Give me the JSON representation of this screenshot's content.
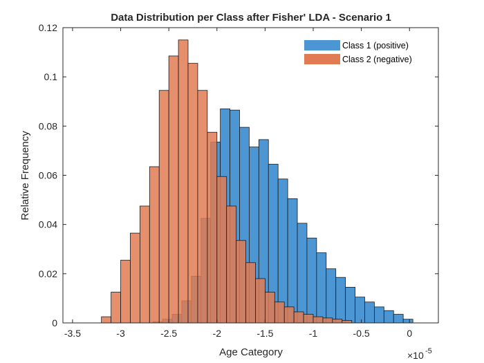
{
  "chart_data": {
    "type": "bar",
    "title": "Data Distribution per Class after Fisher' LDA -  Scenario 1",
    "xlabel": "Age Category",
    "ylabel": "Relative Frequency",
    "x_exponent_label": "×10",
    "x_exponent_power": "-5",
    "xlim": [
      -3.6,
      0.3
    ],
    "ylim": [
      0,
      0.12
    ],
    "x_scale_note": "x values in units of 1e-5",
    "xticks": [
      -3.5,
      -3,
      -2.5,
      -2,
      -1.5,
      -1,
      -0.5,
      0
    ],
    "xtick_labels": [
      "-3.5",
      "-3",
      "-2.5",
      "-2",
      "-1.5",
      "-1",
      "-0.5",
      "0"
    ],
    "yticks": [
      0,
      0.02,
      0.04,
      0.06,
      0.08,
      0.1,
      0.12
    ],
    "ytick_labels": [
      "0",
      "0.02",
      "0.04",
      "0.06",
      "0.08",
      "0.1",
      "0.12"
    ],
    "grid": false,
    "legend_position": "top-right",
    "series": [
      {
        "name": "Class 1 (positive)",
        "color": "#4C97D3",
        "opacity": 1.0,
        "bin_edges": [
          -2.665,
          -2.565,
          -2.465,
          -2.365,
          -2.265,
          -2.165,
          -2.065,
          -1.965,
          -1.865,
          -1.765,
          -1.665,
          -1.565,
          -1.465,
          -1.365,
          -1.265,
          -1.165,
          -1.065,
          -0.965,
          -0.865,
          -0.765,
          -0.665,
          -0.565,
          -0.465,
          -0.365,
          -0.265,
          -0.165,
          -0.065,
          0.035
        ],
        "values": [
          0.0005,
          0.0015,
          0.0035,
          0.009,
          0.019,
          0.0425,
          0.0735,
          0.087,
          0.0865,
          0.0795,
          0.0715,
          0.0745,
          0.0645,
          0.0585,
          0.0505,
          0.0405,
          0.0345,
          0.0285,
          0.022,
          0.0185,
          0.0145,
          0.0105,
          0.0085,
          0.0065,
          0.005,
          0.0035,
          0.0015
        ]
      },
      {
        "name": "Class 2 (negative)",
        "color": "#E07B54",
        "opacity": 0.85,
        "bin_edges": [
          -3.2,
          -3.1,
          -3.0,
          -2.9,
          -2.8,
          -2.7,
          -2.6,
          -2.5,
          -2.4,
          -2.3,
          -2.2,
          -2.1,
          -2.0,
          -1.9,
          -1.8,
          -1.7,
          -1.6,
          -1.5,
          -1.4,
          -1.3,
          -1.2,
          -1.1,
          -1.0,
          -0.9,
          -0.8,
          -0.7,
          -0.6
        ],
        "values": [
          0.0025,
          0.0125,
          0.0255,
          0.0365,
          0.0475,
          0.0635,
          0.0945,
          0.1085,
          0.115,
          0.1055,
          0.0945,
          0.0775,
          0.0595,
          0.0475,
          0.0335,
          0.0245,
          0.018,
          0.0125,
          0.0085,
          0.0065,
          0.0045,
          0.0035,
          0.0025,
          0.002,
          0.0015,
          0.001
        ]
      }
    ]
  }
}
